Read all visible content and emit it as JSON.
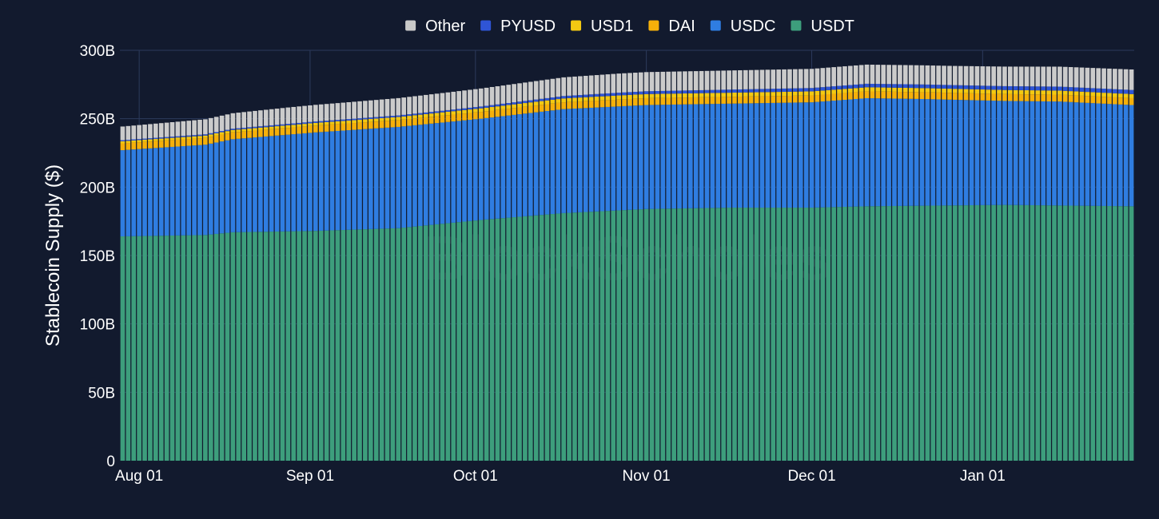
{
  "chart_data": {
    "type": "bar",
    "stacked": true,
    "title": "",
    "xlabel": "",
    "ylabel": "Stablecoin Supply ($)",
    "ylim": [
      0,
      300
    ],
    "yticks": [
      0,
      50,
      100,
      150,
      200,
      250,
      300
    ],
    "ytick_labels": [
      "0",
      "50B",
      "100B",
      "150B",
      "200B",
      "250B",
      "300B"
    ],
    "xticks": [
      {
        "label": "Aug 01",
        "day_index": 3
      },
      {
        "label": "Sep 01",
        "day_index": 34
      },
      {
        "label": "Oct 01",
        "day_index": 64
      },
      {
        "label": "Nov 01",
        "day_index": 95
      },
      {
        "label": "Dec 01",
        "day_index": 125
      },
      {
        "label": "Jan 01",
        "day_index": 156
      }
    ],
    "date_range": {
      "start": "Jul 29",
      "end": "Jan 28"
    },
    "num_bars": 184,
    "grid": true,
    "legend_position": "top-center",
    "watermark": "BlockScholes",
    "units": "billions USD",
    "series": [
      {
        "name": "USDT",
        "color": "#3d9e7c",
        "keypoints": [
          [
            0,
            164
          ],
          [
            15,
            165
          ],
          [
            20,
            167
          ],
          [
            35,
            168
          ],
          [
            50,
            170
          ],
          [
            65,
            176
          ],
          [
            80,
            181
          ],
          [
            95,
            184
          ],
          [
            110,
            185
          ],
          [
            125,
            185
          ],
          [
            135,
            186
          ],
          [
            160,
            187
          ],
          [
            183,
            186
          ]
        ]
      },
      {
        "name": "USDC",
        "color": "#2f7de1",
        "keypoints": [
          [
            0,
            63
          ],
          [
            15,
            66
          ],
          [
            20,
            68
          ],
          [
            35,
            72
          ],
          [
            50,
            74
          ],
          [
            65,
            74
          ],
          [
            80,
            76
          ],
          [
            95,
            76
          ],
          [
            110,
            76
          ],
          [
            125,
            77
          ],
          [
            135,
            79
          ],
          [
            145,
            78
          ],
          [
            160,
            76
          ],
          [
            170,
            76
          ],
          [
            183,
            74
          ]
        ]
      },
      {
        "name": "DAI",
        "color": "#f5b00a",
        "keypoints": [
          [
            0,
            5
          ],
          [
            60,
            5
          ],
          [
            90,
            5
          ],
          [
            120,
            5
          ],
          [
            150,
            5
          ],
          [
            183,
            5
          ]
        ]
      },
      {
        "name": "USD1",
        "color": "#f3c912",
        "keypoints": [
          [
            0,
            1.5
          ],
          [
            40,
            2
          ],
          [
            60,
            2.5
          ],
          [
            90,
            3
          ],
          [
            130,
            3
          ],
          [
            183,
            3
          ]
        ]
      },
      {
        "name": "PYUSD",
        "color": "#2f55d6",
        "keypoints": [
          [
            0,
            0.8
          ],
          [
            60,
            1.2
          ],
          [
            90,
            2
          ],
          [
            130,
            2.5
          ],
          [
            183,
            3
          ]
        ]
      },
      {
        "name": "Other",
        "color": "#cbcbcb",
        "keypoints": [
          [
            0,
            10
          ],
          [
            30,
            12
          ],
          [
            60,
            13
          ],
          [
            90,
            14
          ],
          [
            120,
            14
          ],
          [
            150,
            14
          ],
          [
            183,
            15
          ]
        ]
      }
    ]
  },
  "legend": [
    {
      "name": "Other",
      "color": "#c9c9c9"
    },
    {
      "name": "PYUSD",
      "color": "#2f55d6"
    },
    {
      "name": "USD1",
      "color": "#f3c912"
    },
    {
      "name": "DAI",
      "color": "#f5b00a"
    },
    {
      "name": "USDC",
      "color": "#2f7de1"
    },
    {
      "name": "USDT",
      "color": "#3d9e7c"
    }
  ]
}
